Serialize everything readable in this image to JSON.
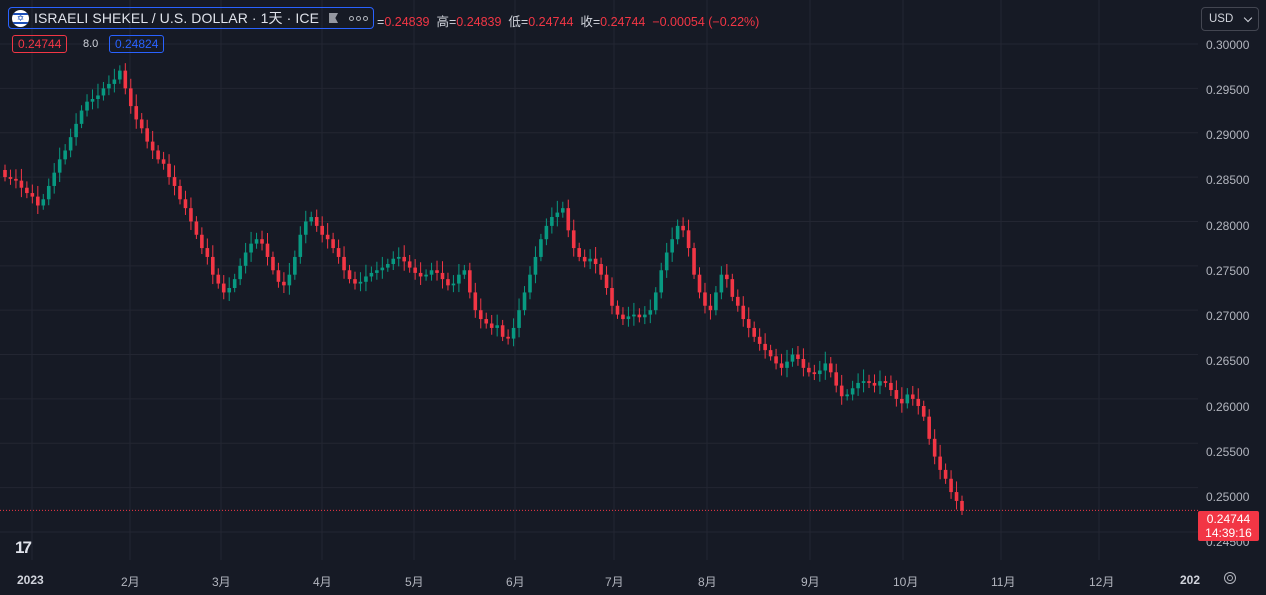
{
  "header": {
    "symbol_title": "ISRAELI SHEKEL / U.S. DOLLAR · 1天 · ICE",
    "ohlc": [
      {
        "k": "=",
        "v": "0.24839"
      },
      {
        "k": "高=",
        "v": "0.24839"
      },
      {
        "k": "低=",
        "v": "0.24744"
      },
      {
        "k": "收=",
        "v": "0.24744"
      },
      {
        "k": "",
        "v": "−0.00054 (−0.22%)"
      }
    ],
    "bid": "0.24744",
    "spread": "8.0",
    "ask": "0.24824",
    "currency": "USD"
  },
  "price_label": {
    "price": "0.24744",
    "time": "14:39:16"
  },
  "y_axis": {
    "ticks": [
      "0.30000",
      "0.29500",
      "0.29000",
      "0.28500",
      "0.28000",
      "0.27500",
      "0.27000",
      "0.26500",
      "0.26000",
      "0.25500",
      "0.25000",
      "0.24500"
    ]
  },
  "x_axis": {
    "ticks": [
      "2023",
      "2月",
      "3月",
      "4月",
      "5月",
      "6月",
      "7月",
      "8月",
      "9月",
      "10月",
      "11月",
      "12月",
      "202"
    ]
  },
  "logo": "17",
  "colors": {
    "background": "#161a25",
    "up": "#089981",
    "down": "#f23645",
    "grid": "#232632",
    "accent": "#2962ff"
  },
  "chart_data": {
    "type": "candlestick",
    "interval": "1D",
    "y_range": [
      0.2435,
      0.3018
    ],
    "last_price": 0.24744,
    "series_closes": [
      0.285,
      0.2848,
      0.2846,
      0.2838,
      0.2832,
      0.2828,
      0.2818,
      0.2825,
      0.284,
      0.2855,
      0.287,
      0.288,
      0.2895,
      0.291,
      0.2925,
      0.2935,
      0.2938,
      0.2942,
      0.295,
      0.2955,
      0.296,
      0.297,
      0.295,
      0.293,
      0.2915,
      0.2905,
      0.289,
      0.288,
      0.287,
      0.2865,
      0.285,
      0.284,
      0.2825,
      0.2815,
      0.28,
      0.2785,
      0.277,
      0.276,
      0.274,
      0.273,
      0.272,
      0.2725,
      0.2735,
      0.275,
      0.2765,
      0.2775,
      0.278,
      0.2775,
      0.276,
      0.2745,
      0.2732,
      0.2728,
      0.274,
      0.276,
      0.2785,
      0.28,
      0.2805,
      0.2795,
      0.2785,
      0.278,
      0.277,
      0.276,
      0.2745,
      0.2735,
      0.273,
      0.2732,
      0.2738,
      0.2742,
      0.2745,
      0.2748,
      0.2752,
      0.2758,
      0.276,
      0.2755,
      0.2748,
      0.2742,
      0.2738,
      0.274,
      0.2745,
      0.2742,
      0.2735,
      0.2728,
      0.273,
      0.274,
      0.2745,
      0.272,
      0.27,
      0.269,
      0.2685,
      0.268,
      0.2683,
      0.267,
      0.2668,
      0.268,
      0.27,
      0.272,
      0.274,
      0.276,
      0.278,
      0.2795,
      0.2805,
      0.281,
      0.2815,
      0.279,
      0.277,
      0.276,
      0.2755,
      0.2758,
      0.2752,
      0.274,
      0.2725,
      0.2705,
      0.2695,
      0.269,
      0.2693,
      0.2695,
      0.2692,
      0.2695,
      0.27,
      0.272,
      0.2745,
      0.2765,
      0.278,
      0.2795,
      0.279,
      0.277,
      0.274,
      0.272,
      0.2705,
      0.27,
      0.272,
      0.274,
      0.2735,
      0.2715,
      0.2705,
      0.269,
      0.268,
      0.267,
      0.2662,
      0.2655,
      0.2648,
      0.264,
      0.2635,
      0.2642,
      0.265,
      0.2645,
      0.2635,
      0.263,
      0.2628,
      0.2632,
      0.264,
      0.263,
      0.2615,
      0.2603,
      0.2605,
      0.2612,
      0.2618,
      0.262,
      0.2618,
      0.2615,
      0.262,
      0.2618,
      0.261,
      0.26,
      0.2595,
      0.2605,
      0.26,
      0.2592,
      0.258,
      0.2555,
      0.2535,
      0.252,
      0.251,
      0.2495,
      0.2485,
      0.2474
    ]
  }
}
